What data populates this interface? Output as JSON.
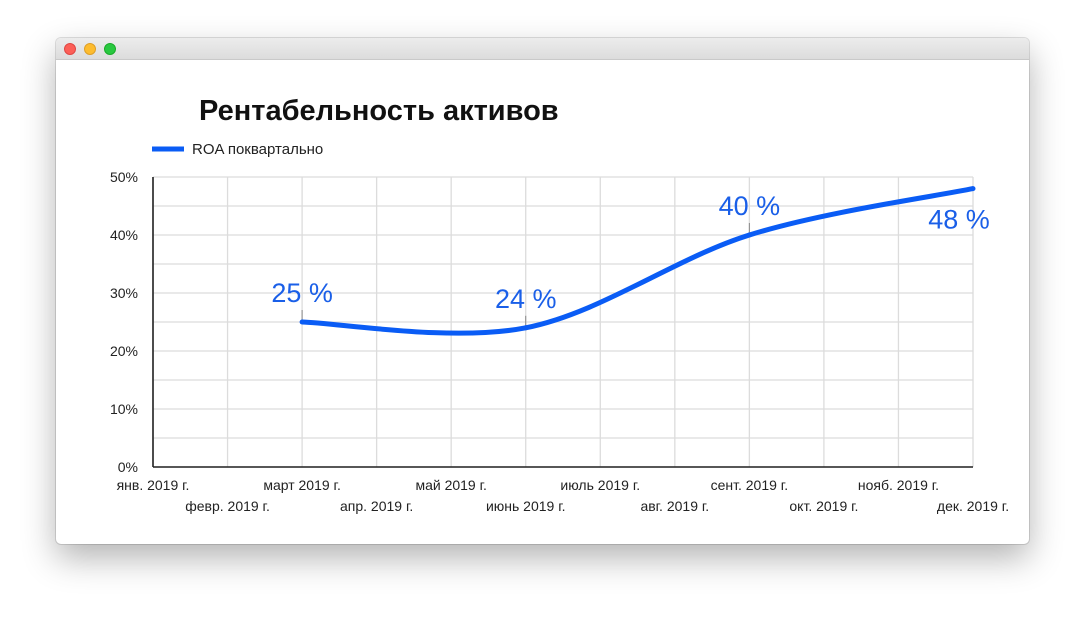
{
  "colors": {
    "series": "#0a5cf5",
    "grid": "#dcdcdc",
    "axis": "#222222",
    "data_label": "#1a5fe8"
  },
  "chart_data": {
    "type": "line",
    "title": "Рентабельность активов",
    "xlabel": "",
    "ylabel": "",
    "categories": [
      "янв. 2019 г.",
      "февр. 2019 г.",
      "март 2019 г.",
      "апр. 2019 г.",
      "май 2019 г.",
      "июнь 2019 г.",
      "июль 2019 г.",
      "авг. 2019 г.",
      "сент. 2019 г.",
      "окт. 2019 г.",
      "нояб. 2019 г.",
      "дек. 2019 г."
    ],
    "y_ticks": [
      "0%",
      "10%",
      "20%",
      "30%",
      "40%",
      "50%"
    ],
    "ylim": [
      0,
      50
    ],
    "grid": true,
    "legend_position": "top-left",
    "series": [
      {
        "name": "ROA поквартально",
        "points": [
          {
            "x": "март 2019 г.",
            "y": 25,
            "label": "25 %"
          },
          {
            "x": "июнь 2019 г.",
            "y": 24,
            "label": "24 %"
          },
          {
            "x": "сент. 2019 г.",
            "y": 40,
            "label": "40 %"
          },
          {
            "x": "дек. 2019 г.",
            "y": 48,
            "label": "48 %"
          }
        ]
      }
    ]
  }
}
